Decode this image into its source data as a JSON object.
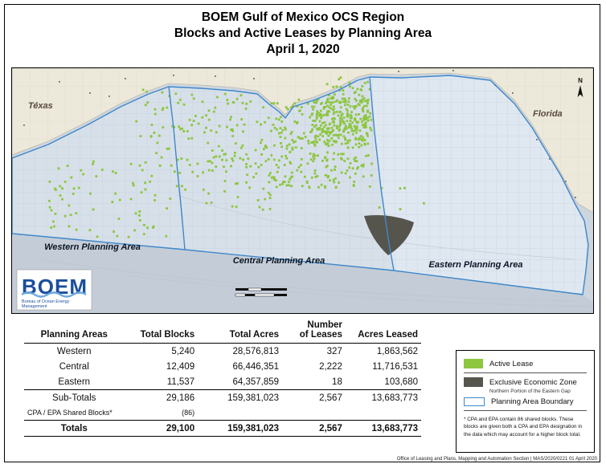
{
  "title": {
    "line1": "BOEM Gulf of Mexico OCS Region",
    "line2": "Blocks and Active Leases by Planning Area",
    "line3": "April 1, 2020"
  },
  "map": {
    "labels": {
      "texas": "Texas",
      "florida": "Florida",
      "western": "Western Planning Area",
      "central": "Central Planning Area",
      "eastern": "Eastern Planning Area"
    },
    "logo": {
      "text": "BOEM",
      "sub1": "Bureau of Ocean Energy",
      "sub2": "Management"
    },
    "north": "N",
    "colors": {
      "water": "#cdd6df",
      "land": "#ece8da",
      "active_lease": "#8dc63f",
      "eez": "#56554d",
      "boundary": "#3f87c9"
    }
  },
  "table": {
    "headers": {
      "area": "Planning Areas",
      "blocks": "Total Blocks",
      "acres": "Total Acres",
      "leases1": "Number",
      "leases2": "of Leases",
      "leased": "Acres Leased"
    },
    "rows": [
      {
        "area": "Western",
        "blocks": "5,240",
        "acres": "28,576,813",
        "leases": "327",
        "leased": "1,863,562"
      },
      {
        "area": "Central",
        "blocks": "12,409",
        "acres": "66,446,351",
        "leases": "2,222",
        "leased": "11,716,531"
      },
      {
        "area": "Eastern",
        "blocks": "11,537",
        "acres": "64,357,859",
        "leases": "18",
        "leased": "103,680"
      }
    ],
    "subtotals": {
      "area": "Sub-Totals",
      "blocks": "29,186",
      "acres": "159,381,023",
      "leases": "2,567",
      "leased": "13,683,773"
    },
    "shared": {
      "area": "CPA / EPA Shared Blocks*",
      "blocks": "(86)"
    },
    "totals": {
      "area": "Totals",
      "blocks": "29,100",
      "acres": "159,381,023",
      "leases": "2,567",
      "leased": "13,683,773"
    }
  },
  "legend": {
    "active_lease": "Active Lease",
    "eez": "Exclusive Economic Zone",
    "eez_sub": "Northern Portion of the Eastern Gap",
    "boundary": "Planning Area Boundary",
    "note": "* CPA and EPA contain 86 shared blocks. These blocks are given both a CPA and EPA designation in the data which may account for a higher block total."
  },
  "footer": "Office of Leasing and Plans, Mapping and Automation Section | MAS/2020/0221 01 April 2020"
}
